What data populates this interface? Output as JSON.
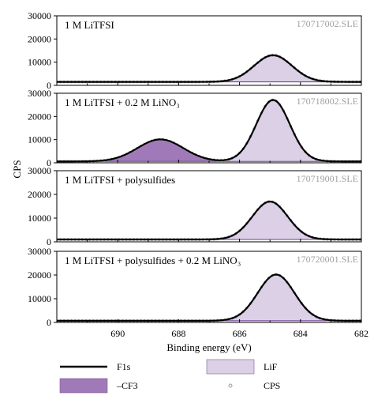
{
  "chart_data": {
    "type": "area",
    "xlabel": "Binding energy (eV)",
    "ylabel": "CPS",
    "xlim": [
      692,
      682
    ],
    "ylim": [
      0,
      30000
    ],
    "x_ticks": [
      "690",
      "688",
      "686",
      "684",
      "682"
    ],
    "y_ticks": [
      "0",
      "10000",
      "20000",
      "30000"
    ],
    "legend": [
      {
        "name": "F1s",
        "style": "line",
        "color": "#000000"
      },
      {
        "name": "LiF",
        "style": "fill",
        "color": "#dcd0e6"
      },
      {
        "name": "–CF3",
        "style": "fill",
        "color": "#a07ab8"
      },
      {
        "name": "CPS",
        "style": "marker",
        "color": "#9a9a9a"
      }
    ],
    "colors": {
      "LiF": "#dcd0e6",
      "CF3": "#a07ab8",
      "fit": "#000000",
      "outline_lif": "#7a5a92"
    },
    "panels": [
      {
        "label": "1 M LiTFSI",
        "file": "170717002.SLE",
        "baseline": 1500,
        "peaks": [
          {
            "name": "LiF",
            "center": 684.9,
            "height": 11500,
            "sigma": 0.62
          }
        ]
      },
      {
        "label": "1 M LiTFSI + 0.2 M LiNO₃",
        "file": "170718002.SLE",
        "baseline": 600,
        "peaks": [
          {
            "name": "CF3",
            "center": 688.6,
            "height": 9500,
            "sigma": 0.75
          },
          {
            "name": "LiF",
            "center": 684.9,
            "height": 26500,
            "sigma": 0.55
          }
        ]
      },
      {
        "label": "1 M LiTFSI + polysulfides",
        "file": "170719001.SLE",
        "baseline": 1000,
        "peaks": [
          {
            "name": "LiF",
            "center": 685.0,
            "height": 16000,
            "sigma": 0.58
          }
        ]
      },
      {
        "label": "1 M LiTFSI + polysulfides + 0.2 M LiNO₃",
        "file": "170720001.SLE",
        "baseline": 700,
        "peaks": [
          {
            "name": "LiF",
            "center": 684.8,
            "height": 19500,
            "sigma": 0.6
          }
        ]
      }
    ]
  }
}
